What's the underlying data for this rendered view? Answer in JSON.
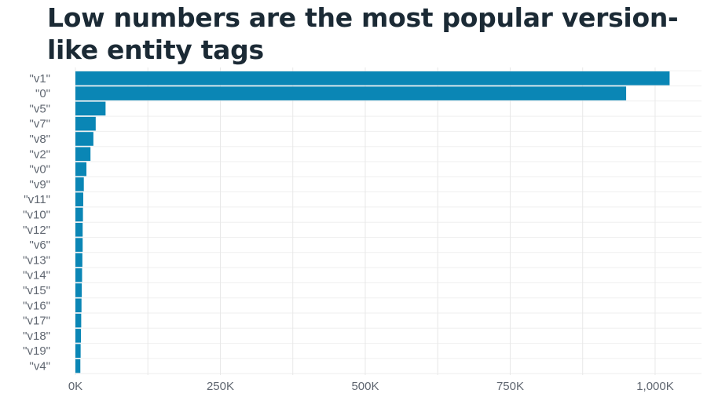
{
  "chart_data": {
    "type": "bar",
    "orientation": "horizontal",
    "title": "Low numbers are the most popular version-like entity tags",
    "xlabel": "",
    "ylabel": "",
    "categories": [
      "\"v1\"",
      "\"0\"",
      "\"v5\"",
      "\"v7\"",
      "\"v8\"",
      "\"v2\"",
      "\"v0\"",
      "\"v9\"",
      "\"v11\"",
      "\"v10\"",
      "\"v12\"",
      "\"v6\"",
      "\"v13\"",
      "\"v14\"",
      "\"v15\"",
      "\"v16\"",
      "\"v17\"",
      "\"v18\"",
      "\"v19\"",
      "\"v4\""
    ],
    "values": [
      1025000,
      950000,
      52000,
      35000,
      31000,
      26000,
      19000,
      14500,
      13500,
      13000,
      12500,
      12500,
      12000,
      11500,
      11000,
      10500,
      10000,
      9500,
      9000,
      8500
    ],
    "xlim": [
      0,
      1080000
    ],
    "x_ticks": [
      0,
      250000,
      500000,
      750000,
      1000000
    ],
    "x_tick_labels": [
      "0K",
      "250K",
      "500K",
      "750K",
      "1,000K"
    ],
    "grid": true,
    "bar_color": "#0a86b5"
  }
}
